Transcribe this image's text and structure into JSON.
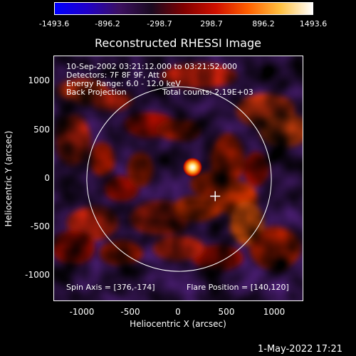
{
  "colorbar": {
    "labels": [
      "-1493.6",
      "-896.2",
      "-298.7",
      "298.7",
      "896.2",
      "1493.6"
    ],
    "colors": [
      "#0000ff",
      "#2000c8",
      "#3c1060",
      "#1a0a20",
      "#800000",
      "#d01000",
      "#ff6000",
      "#ffc040",
      "#ffffff"
    ]
  },
  "title": "Reconstructed RHESSI Image",
  "info": {
    "time_range": "10-Sep-2002 03:21:12.000 to 03:21:52.000",
    "detectors": "Detectors: 7F 8F 9F, Att 0",
    "energy_range": "Energy Range: 6.0 - 12.0 keV",
    "method": "Back Projection",
    "total_counts": "Total counts: 2.19E+03",
    "spin_axis": "Spin Axis = [376,-174]",
    "flare_position": "Flare Position = [140,120]"
  },
  "axes": {
    "x_label": "Heliocentric X (arcsec)",
    "y_label": "Heliocentric Y (arcsec)",
    "x_ticks": [
      "-1000",
      "-500",
      "0",
      "500",
      "1000"
    ],
    "y_ticks": [
      "1000",
      "500",
      "0",
      "-500",
      "-1000"
    ],
    "x_range": [
      -1300,
      1300
    ],
    "y_range": [
      -1250,
      1250
    ]
  },
  "solar_disk_radius": 960,
  "spin_axis_marker": [
    376,
    -174
  ],
  "flare_source": [
    140,
    120
  ],
  "timestamp": "1-May-2022 17:21"
}
